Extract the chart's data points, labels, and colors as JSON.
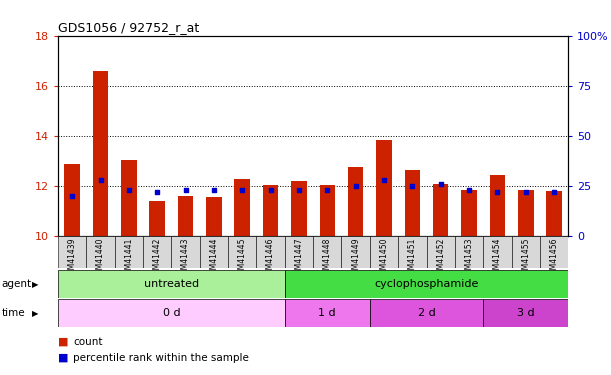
{
  "title": "GDS1056 / 92752_r_at",
  "samples": [
    "GSM41439",
    "GSM41440",
    "GSM41441",
    "GSM41442",
    "GSM41443",
    "GSM41444",
    "GSM41445",
    "GSM41446",
    "GSM41447",
    "GSM41448",
    "GSM41449",
    "GSM41450",
    "GSM41451",
    "GSM41452",
    "GSM41453",
    "GSM41454",
    "GSM41455",
    "GSM41456"
  ],
  "count_values": [
    12.9,
    16.6,
    13.05,
    11.4,
    11.6,
    11.55,
    12.3,
    12.05,
    12.2,
    12.05,
    12.75,
    13.85,
    12.65,
    12.1,
    11.85,
    12.45,
    11.85,
    11.8
  ],
  "percentile_values": [
    20,
    28,
    23,
    22,
    23,
    23,
    23,
    23,
    23,
    23,
    25,
    28,
    25,
    26,
    23,
    22,
    22,
    22
  ],
  "count_baseline": 10,
  "ylim_left": [
    10,
    18
  ],
  "ylim_right": [
    0,
    100
  ],
  "yticks_left": [
    10,
    12,
    14,
    16,
    18
  ],
  "yticks_right": [
    0,
    25,
    50,
    75,
    100
  ],
  "ytick_labels_right": [
    "0",
    "25",
    "50",
    "75",
    "100%"
  ],
  "bar_color": "#cc2200",
  "dot_color": "#0000cc",
  "grid_color": "black",
  "agent_groups": [
    {
      "label": "untreated",
      "start": 0,
      "end": 8,
      "color": "#aaf09a"
    },
    {
      "label": "cyclophosphamide",
      "start": 8,
      "end": 18,
      "color": "#44dd44"
    }
  ],
  "time_groups": [
    {
      "label": "0 d",
      "start": 0,
      "end": 8,
      "color": "#ffccff"
    },
    {
      "label": "1 d",
      "start": 8,
      "end": 11,
      "color": "#ee77ee"
    },
    {
      "label": "2 d",
      "start": 11,
      "end": 15,
      "color": "#dd55dd"
    },
    {
      "label": "3 d",
      "start": 15,
      "end": 18,
      "color": "#cc44cc"
    }
  ],
  "bar_width": 0.55,
  "legend_count_label": "count",
  "legend_percentile_label": "percentile rank within the sample",
  "agent_label": "agent",
  "time_label": "time",
  "background_color": "#ffffff",
  "plot_bg_color": "#ffffff",
  "tick_color_left": "#cc2200",
  "tick_color_right": "#0000cc",
  "gridline_values": [
    12,
    14,
    16
  ],
  "xticklabel_bg": "#d8d8d8"
}
